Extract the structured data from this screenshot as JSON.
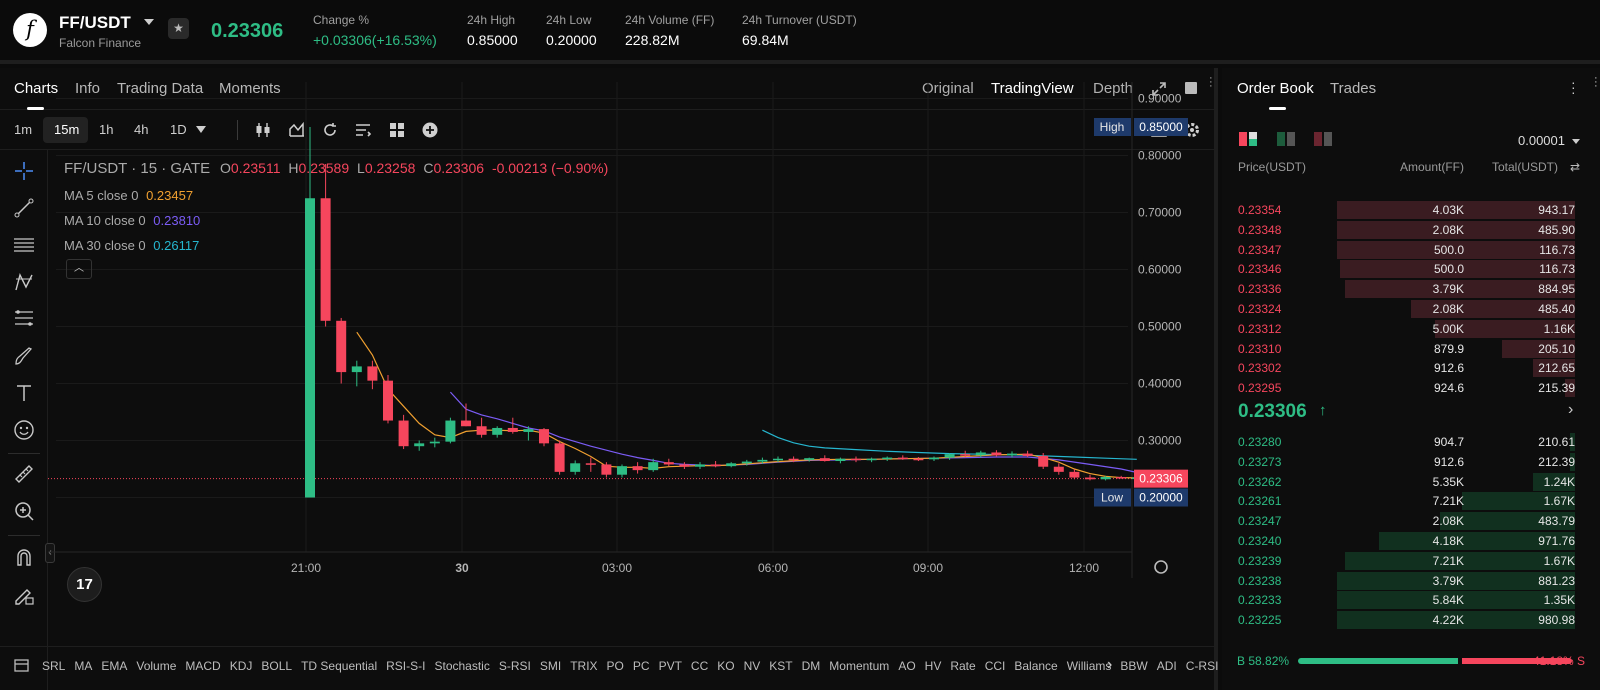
{
  "header": {
    "pair": "FF/USDT",
    "project": "Falcon Finance",
    "logo_letter": "f",
    "last_price": "0.23306",
    "stats": [
      {
        "label": "Change %",
        "value": "+0.03306(+16.53%)",
        "up": true
      },
      {
        "label": "24h High",
        "value": "0.85000",
        "up": false
      },
      {
        "label": "24h Low",
        "value": "0.20000",
        "up": false
      },
      {
        "label": "24h Volume (FF)",
        "value": "228.82M",
        "up": false
      },
      {
        "label": "24h Turnover (USDT)",
        "value": "69.84M",
        "up": false
      }
    ]
  },
  "chart_tabs": {
    "items": [
      "Charts",
      "Info",
      "Trading Data",
      "Moments"
    ],
    "active": "Charts",
    "views": [
      "Original",
      "TradingView",
      "Depth"
    ],
    "active_view": "TradingView"
  },
  "toolbar": {
    "intervals": [
      "1m",
      "15m",
      "1h",
      "4h",
      "1D"
    ],
    "active_interval": "15m"
  },
  "legend": {
    "title": "FF/USDT · 15 · GATE",
    "o_label": "O",
    "o": "0.23511",
    "h_label": "H",
    "h": "0.23589",
    "l_label": "L",
    "l": "0.23258",
    "c_label": "C",
    "c": "0.23306",
    "change": "-0.00213 (−0.90%)",
    "ma": [
      {
        "label": "MA 5 close 0",
        "value": "0.23457",
        "color": "#f0a030"
      },
      {
        "label": "MA 10 close 0",
        "value": "0.23810",
        "color": "#7b5cf5"
      },
      {
        "label": "MA 30 close 0",
        "value": "0.26117",
        "color": "#26b6cf"
      }
    ]
  },
  "chart_data": {
    "type": "candlestick",
    "price_axis": [
      "0.90000",
      "0.80000",
      "0.70000",
      "0.60000",
      "0.50000",
      "0.40000",
      "0.30000",
      "0.20000"
    ],
    "ylim": [
      0.1,
      0.92
    ],
    "time_axis": [
      "21:00",
      "30",
      "03:00",
      "06:00",
      "09:00",
      "12:00"
    ],
    "high_label": "High",
    "high_value": "0.85000",
    "low_label": "Low",
    "low_value": "0.20000",
    "current_value": "0.23306",
    "colors": {
      "up": "#2ebd85",
      "down": "#f6465d"
    },
    "candles": [
      [
        0.2,
        0.85,
        0.2,
        0.725
      ],
      [
        0.725,
        0.785,
        0.5,
        0.51
      ],
      [
        0.51,
        0.515,
        0.4,
        0.42
      ],
      [
        0.42,
        0.44,
        0.395,
        0.43
      ],
      [
        0.43,
        0.44,
        0.39,
        0.405
      ],
      [
        0.405,
        0.415,
        0.33,
        0.335
      ],
      [
        0.335,
        0.345,
        0.285,
        0.29
      ],
      [
        0.29,
        0.3,
        0.282,
        0.295
      ],
      [
        0.295,
        0.305,
        0.288,
        0.298
      ],
      [
        0.298,
        0.34,
        0.295,
        0.335
      ],
      [
        0.335,
        0.365,
        0.325,
        0.325
      ],
      [
        0.325,
        0.34,
        0.305,
        0.31
      ],
      [
        0.31,
        0.325,
        0.305,
        0.322
      ],
      [
        0.322,
        0.34,
        0.312,
        0.315
      ],
      [
        0.315,
        0.325,
        0.3,
        0.32
      ],
      [
        0.32,
        0.322,
        0.29,
        0.295
      ],
      [
        0.295,
        0.3,
        0.24,
        0.245
      ],
      [
        0.245,
        0.265,
        0.24,
        0.26
      ],
      [
        0.26,
        0.27,
        0.245,
        0.258
      ],
      [
        0.258,
        0.262,
        0.235,
        0.24
      ],
      [
        0.24,
        0.258,
        0.235,
        0.255
      ],
      [
        0.255,
        0.262,
        0.242,
        0.248
      ],
      [
        0.248,
        0.268,
        0.245,
        0.262
      ],
      [
        0.262,
        0.268,
        0.255,
        0.258
      ],
      [
        0.258,
        0.262,
        0.25,
        0.254
      ],
      [
        0.254,
        0.262,
        0.25,
        0.258
      ],
      [
        0.258,
        0.264,
        0.253,
        0.255
      ],
      [
        0.255,
        0.262,
        0.253,
        0.26
      ],
      [
        0.26,
        0.266,
        0.256,
        0.263
      ],
      [
        0.263,
        0.27,
        0.259,
        0.266
      ],
      [
        0.266,
        0.272,
        0.262,
        0.268
      ],
      [
        0.268,
        0.272,
        0.262,
        0.266
      ],
      [
        0.266,
        0.27,
        0.263,
        0.269
      ],
      [
        0.269,
        0.274,
        0.263,
        0.264
      ],
      [
        0.264,
        0.27,
        0.26,
        0.268
      ],
      [
        0.268,
        0.272,
        0.262,
        0.266
      ],
      [
        0.266,
        0.27,
        0.262,
        0.268
      ],
      [
        0.268,
        0.272,
        0.264,
        0.27
      ],
      [
        0.27,
        0.274,
        0.266,
        0.268
      ],
      [
        0.268,
        0.271,
        0.264,
        0.267
      ],
      [
        0.267,
        0.272,
        0.264,
        0.27
      ],
      [
        0.27,
        0.278,
        0.266,
        0.276
      ],
      [
        0.276,
        0.282,
        0.27,
        0.274
      ],
      [
        0.274,
        0.282,
        0.27,
        0.279
      ],
      [
        0.279,
        0.283,
        0.272,
        0.274
      ],
      [
        0.274,
        0.281,
        0.27,
        0.277
      ],
      [
        0.277,
        0.282,
        0.271,
        0.273
      ],
      [
        0.273,
        0.278,
        0.25,
        0.254
      ],
      [
        0.254,
        0.26,
        0.24,
        0.245
      ],
      [
        0.245,
        0.25,
        0.232,
        0.235
      ],
      [
        0.235,
        0.24,
        0.23,
        0.232
      ],
      [
        0.232,
        0.238,
        0.23,
        0.236
      ],
      [
        0.236,
        0.238,
        0.233,
        0.234
      ],
      [
        0.234,
        0.236,
        0.232,
        0.235
      ],
      [
        0.235,
        0.236,
        0.232,
        0.233
      ]
    ],
    "ma5": [
      [
        3,
        0.49
      ],
      [
        4,
        0.45
      ],
      [
        5,
        0.39
      ],
      [
        6,
        0.36
      ],
      [
        7,
        0.33
      ],
      [
        8,
        0.31
      ],
      [
        9,
        0.305
      ],
      [
        10,
        0.316
      ],
      [
        11,
        0.318
      ],
      [
        12,
        0.318
      ],
      [
        13,
        0.317
      ],
      [
        14,
        0.318
      ],
      [
        15,
        0.313
      ],
      [
        16,
        0.298
      ],
      [
        17,
        0.286
      ],
      [
        18,
        0.272
      ],
      [
        19,
        0.255
      ],
      [
        20,
        0.253
      ],
      [
        21,
        0.253
      ],
      [
        22,
        0.251
      ],
      [
        23,
        0.254
      ],
      [
        24,
        0.255
      ],
      [
        25,
        0.256
      ],
      [
        26,
        0.256
      ],
      [
        27,
        0.257
      ],
      [
        28,
        0.259
      ],
      [
        30,
        0.263
      ],
      [
        32,
        0.266
      ],
      [
        34,
        0.267
      ],
      [
        36,
        0.267
      ],
      [
        38,
        0.268
      ],
      [
        40,
        0.269
      ],
      [
        42,
        0.272
      ],
      [
        44,
        0.275
      ],
      [
        46,
        0.276
      ],
      [
        47,
        0.27
      ],
      [
        48,
        0.262
      ],
      [
        49,
        0.25
      ],
      [
        50,
        0.242
      ],
      [
        51,
        0.237
      ],
      [
        52,
        0.235
      ],
      [
        54,
        0.234
      ]
    ],
    "ma10": [
      [
        9,
        0.385
      ],
      [
        10,
        0.355
      ],
      [
        11,
        0.345
      ],
      [
        12,
        0.338
      ],
      [
        13,
        0.33
      ],
      [
        14,
        0.322
      ],
      [
        15,
        0.317
      ],
      [
        16,
        0.306
      ],
      [
        17,
        0.298
      ],
      [
        18,
        0.29
      ],
      [
        19,
        0.283
      ],
      [
        20,
        0.276
      ],
      [
        21,
        0.27
      ],
      [
        22,
        0.265
      ],
      [
        23,
        0.26
      ],
      [
        24,
        0.258
      ],
      [
        26,
        0.256
      ],
      [
        28,
        0.258
      ],
      [
        30,
        0.262
      ],
      [
        32,
        0.265
      ],
      [
        34,
        0.266
      ],
      [
        36,
        0.267
      ],
      [
        38,
        0.268
      ],
      [
        40,
        0.269
      ],
      [
        42,
        0.27
      ],
      [
        44,
        0.271
      ],
      [
        46,
        0.271
      ],
      [
        48,
        0.266
      ],
      [
        50,
        0.258
      ],
      [
        52,
        0.25
      ],
      [
        54,
        0.238
      ]
    ],
    "ma30": [
      [
        29,
        0.318
      ],
      [
        30,
        0.305
      ],
      [
        31,
        0.296
      ],
      [
        32,
        0.29
      ],
      [
        33,
        0.287
      ],
      [
        35,
        0.284
      ],
      [
        37,
        0.281
      ],
      [
        39,
        0.279
      ],
      [
        41,
        0.277
      ],
      [
        43,
        0.276
      ],
      [
        45,
        0.275
      ],
      [
        47,
        0.273
      ],
      [
        49,
        0.271
      ],
      [
        51,
        0.269
      ],
      [
        53,
        0.267
      ]
    ]
  },
  "indicators": [
    "SRL",
    "MA",
    "EMA",
    "Volume",
    "MACD",
    "KDJ",
    "BOLL",
    "TD Sequential",
    "RSI-S-I",
    "Stochastic",
    "S-RSI",
    "SMI",
    "TRIX",
    "PO",
    "PC",
    "PVT",
    "CC",
    "KO",
    "NV",
    "KST",
    "DM",
    "Momentum",
    "AO",
    "HV",
    "Rate",
    "CCI",
    "Balance",
    "Williams",
    "BBW",
    "ADI",
    "C-RSI"
  ],
  "orderbook": {
    "tabs": [
      "Order Book",
      "Trades"
    ],
    "active_tab": "Order Book",
    "precision": "0.00001",
    "headers": {
      "price": "Price(USDT)",
      "amount": "Amount(FF)",
      "total": "Total(USDT)"
    },
    "asks": [
      {
        "price": "0.23354",
        "amount": "4.03K",
        "total": "943.17",
        "depth": 0.97
      },
      {
        "price": "0.23348",
        "amount": "2.08K",
        "total": "485.90",
        "depth": 0.97
      },
      {
        "price": "0.23347",
        "amount": "500.0",
        "total": "116.73",
        "depth": 0.97
      },
      {
        "price": "0.23346",
        "amount": "500.0",
        "total": "116.73",
        "depth": 0.96
      },
      {
        "price": "0.23336",
        "amount": "3.79K",
        "total": "884.95",
        "depth": 0.94
      },
      {
        "price": "0.23324",
        "amount": "2.08K",
        "total": "485.40",
        "depth": 0.67
      },
      {
        "price": "0.23312",
        "amount": "5.00K",
        "total": "1.16K",
        "depth": 0.57
      },
      {
        "price": "0.23310",
        "amount": "879.9",
        "total": "205.10",
        "depth": 0.3
      },
      {
        "price": "0.23302",
        "amount": "912.6",
        "total": "212.65",
        "depth": 0.17
      },
      {
        "price": "0.23295",
        "amount": "924.6",
        "total": "215.39",
        "depth": 0.04
      }
    ],
    "mid_price": "0.23306",
    "bids": [
      {
        "price": "0.23280",
        "amount": "904.7",
        "total": "210.61",
        "depth": 0.02
      },
      {
        "price": "0.23273",
        "amount": "912.6",
        "total": "212.39",
        "depth": 0.02
      },
      {
        "price": "0.23262",
        "amount": "5.35K",
        "total": "1.24K",
        "depth": 0.17
      },
      {
        "price": "0.23261",
        "amount": "7.21K",
        "total": "1.67K",
        "depth": 0.46
      },
      {
        "price": "0.23247",
        "amount": "2.08K",
        "total": "483.79",
        "depth": 0.55
      },
      {
        "price": "0.23240",
        "amount": "4.18K",
        "total": "971.76",
        "depth": 0.8
      },
      {
        "price": "0.23239",
        "amount": "7.21K",
        "total": "1.67K",
        "depth": 0.94
      },
      {
        "price": "0.23238",
        "amount": "3.79K",
        "total": "881.23",
        "depth": 0.97
      },
      {
        "price": "0.23233",
        "amount": "5.84K",
        "total": "1.35K",
        "depth": 0.97
      },
      {
        "price": "0.23225",
        "amount": "4.22K",
        "total": "980.98",
        "depth": 0.97
      }
    ],
    "buy_label": "B 58.82%",
    "sell_label": "41.18% S",
    "buy_ratio": 0.5882
  }
}
